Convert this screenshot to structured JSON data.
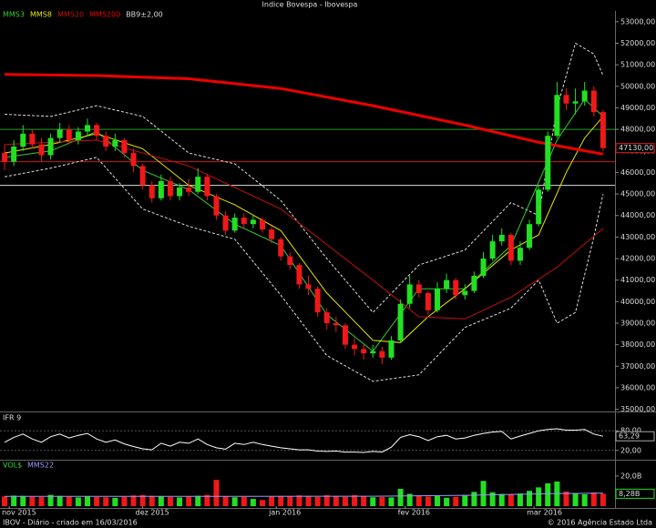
{
  "chart_data": [
    {
      "type": "candlestick",
      "title": "Indice Bovespa - Ibovespa",
      "xlim": [
        -0.5,
        66
      ],
      "xticks": [
        {
          "value": 0.5,
          "label": "nov 2015"
        },
        {
          "value": 15,
          "label": "dez 2015"
        },
        {
          "value": 29.5,
          "label": "jan 2016"
        },
        {
          "value": 43.5,
          "label": "fev 2016"
        },
        {
          "value": 57.5,
          "label": "mar 2016"
        }
      ],
      "ylim": [
        34900,
        53500
      ],
      "yticks": [
        {
          "value": 35000,
          "label": "35000,00"
        },
        {
          "value": 36000,
          "label": "36000,00"
        },
        {
          "value": 37000,
          "label": "37000,00"
        },
        {
          "value": 38000,
          "label": "38000,00"
        },
        {
          "value": 39000,
          "label": "39000,00"
        },
        {
          "value": 40000,
          "label": "40000,00"
        },
        {
          "value": 41000,
          "label": "41000,00"
        },
        {
          "value": 42000,
          "label": "42000,00"
        },
        {
          "value": 43000,
          "label": "43000,00"
        },
        {
          "value": 44000,
          "label": "44000,00"
        },
        {
          "value": 45000,
          "label": "45000,00"
        },
        {
          "value": 46000,
          "label": "46000,00"
        },
        {
          "value": 47000,
          "label": "47000,00"
        },
        {
          "value": 48000,
          "label": "48000,00"
        },
        {
          "value": 49000,
          "label": "49000,00"
        },
        {
          "value": 50000,
          "label": "50000,00"
        },
        {
          "value": 51000,
          "label": "51000,00"
        },
        {
          "value": 52000,
          "label": "52000,00"
        },
        {
          "value": 53000,
          "label": "53000,00"
        }
      ],
      "open": [
        46900,
        46500,
        47200,
        47800,
        47300,
        46800,
        47600,
        48000,
        47500,
        47900,
        48200,
        47700,
        47200,
        47500,
        46900,
        46300,
        45400,
        44800,
        45600,
        44900,
        45300,
        45100,
        45800,
        44900,
        44000,
        43300,
        43900,
        43600,
        43800,
        43350,
        42900,
        42100,
        41700,
        40800,
        40600,
        39500,
        39000,
        38900,
        38000,
        37800,
        37600,
        37700,
        37400,
        38200,
        39900,
        40800,
        40400,
        39600,
        40600,
        41000,
        40300,
        40500,
        41200,
        42000,
        42800,
        43100,
        41900,
        42500,
        43600,
        45200,
        47700,
        49600,
        49200,
        49300,
        49800,
        48800
      ],
      "high": [
        47300,
        47500,
        48200,
        48000,
        47600,
        47800,
        48300,
        48200,
        48100,
        48500,
        48300,
        47900,
        47800,
        47600,
        47100,
        46400,
        45600,
        45900,
        45800,
        45500,
        45700,
        46200,
        45900,
        45000,
        44200,
        44100,
        44100,
        44000,
        43900,
        43500,
        43000,
        42300,
        41800,
        41200,
        40700,
        39700,
        39300,
        39000,
        38300,
        38000,
        38000,
        37900,
        38400,
        40100,
        41200,
        41000,
        40500,
        40900,
        41300,
        41100,
        40800,
        41400,
        42300,
        43100,
        43400,
        43200,
        42800,
        43800,
        45400,
        47900,
        50200,
        49900,
        49900,
        50200,
        50000,
        48900
      ],
      "low": [
        46100,
        46300,
        47000,
        47100,
        46500,
        46600,
        47400,
        47300,
        47300,
        47700,
        47500,
        47000,
        47000,
        46700,
        46000,
        45200,
        44600,
        44700,
        44700,
        44700,
        44900,
        45000,
        44700,
        43800,
        43100,
        43200,
        43400,
        43400,
        43200,
        42700,
        41900,
        41500,
        40600,
        40300,
        39300,
        38700,
        38600,
        37800,
        37500,
        37300,
        37400,
        37100,
        37300,
        38100,
        39700,
        40200,
        39400,
        39500,
        40400,
        40100,
        40100,
        40400,
        41100,
        41900,
        42600,
        41700,
        41700,
        42400,
        43500,
        45100,
        47600,
        48900,
        48700,
        49100,
        48600,
        47000
      ],
      "close": [
        46500,
        47200,
        47800,
        47300,
        46800,
        47600,
        48000,
        47500,
        47900,
        48200,
        47700,
        47200,
        47500,
        46900,
        46300,
        45400,
        44800,
        45600,
        44900,
        45300,
        45100,
        45800,
        44900,
        44000,
        43300,
        43900,
        43600,
        43800,
        43350,
        42900,
        42100,
        41700,
        40800,
        40600,
        39500,
        39000,
        38900,
        38000,
        37800,
        37600,
        37700,
        37400,
        38200,
        39900,
        40800,
        40400,
        39600,
        40600,
        41000,
        40300,
        40500,
        41200,
        42000,
        42800,
        43100,
        41900,
        42500,
        43600,
        45200,
        47700,
        49600,
        49200,
        49300,
        49800,
        48800,
        47130
      ],
      "up_color": "#22e022",
      "down_color": "#f01818",
      "lines": [
        {
          "name": "MMS3",
          "color": "#33cc33",
          "x": [
            0,
            5,
            10,
            15,
            20,
            25,
            30,
            35,
            40,
            45,
            50,
            55,
            60,
            63,
            65
          ],
          "values": [
            46700,
            47000,
            47900,
            46100,
            45200,
            43600,
            42600,
            39400,
            37700,
            40600,
            40600,
            42600,
            47500,
            49400,
            48600
          ]
        },
        {
          "name": "MMS8",
          "color": "#e6e600",
          "x": [
            0,
            5,
            10,
            15,
            20,
            25,
            30,
            35,
            40,
            43,
            46,
            50,
            55,
            58,
            61,
            63,
            65
          ],
          "values": [
            46900,
            47300,
            47800,
            47100,
            45400,
            44500,
            43300,
            40400,
            38200,
            38100,
            39300,
            40600,
            42400,
            43100,
            46000,
            47600,
            48600
          ]
        },
        {
          "name": "MMS20",
          "color": "#c41010",
          "x": [
            0,
            10,
            20,
            30,
            40,
            45,
            50,
            55,
            60,
            65
          ],
          "values": [
            47300,
            47500,
            46300,
            44300,
            41000,
            39300,
            39200,
            40200,
            41600,
            43400
          ]
        },
        {
          "name": "MMS200",
          "color": "#ee0000",
          "x": [
            0,
            10,
            20,
            30,
            40,
            50,
            58,
            65
          ],
          "values": [
            50550,
            50500,
            50350,
            49900,
            49100,
            48200,
            47400,
            46850
          ]
        }
      ],
      "bands": {
        "name": "BB9±2,00",
        "color": "#dddddd",
        "upper": {
          "x": [
            0,
            5,
            10,
            15,
            20,
            25,
            30,
            35,
            40,
            45,
            50,
            55,
            58,
            60,
            62,
            64,
            65
          ],
          "values": [
            48700,
            48600,
            49100,
            48600,
            46900,
            46400,
            44700,
            42000,
            39500,
            41700,
            42400,
            44600,
            44000,
            49000,
            52000,
            51500,
            50500
          ]
        },
        "lower": {
          "x": [
            0,
            5,
            10,
            15,
            20,
            25,
            30,
            35,
            40,
            45,
            50,
            55,
            58,
            60,
            62,
            64,
            65
          ],
          "values": [
            45800,
            46200,
            46700,
            44300,
            43500,
            42900,
            40300,
            37500,
            36300,
            36600,
            38800,
            39700,
            41000,
            39000,
            39500,
            43000,
            45000
          ]
        }
      },
      "hlines": [
        {
          "value": 48000,
          "color": "#1fa01f"
        },
        {
          "value": 46500,
          "color": "#c81818"
        },
        {
          "value": 45400,
          "color": "#dddddd"
        }
      ],
      "last": {
        "value": 47130,
        "label": "47130,00"
      }
    },
    {
      "type": "line",
      "title": "IFR 9",
      "ylim": [
        0,
        100
      ],
      "yticks": [
        {
          "value": 80,
          "label": "80,00"
        },
        {
          "value": 20,
          "label": "20,00"
        }
      ],
      "color": "#ffffff",
      "values": [
        45,
        60,
        70,
        55,
        45,
        62,
        70,
        58,
        66,
        72,
        55,
        45,
        52,
        40,
        32,
        25,
        22,
        42,
        33,
        45,
        42,
        55,
        38,
        28,
        24,
        42,
        38,
        45,
        38,
        33,
        28,
        25,
        22,
        22,
        18,
        17,
        18,
        15,
        15,
        14,
        17,
        15,
        30,
        60,
        68,
        62,
        50,
        62,
        66,
        55,
        58,
        66,
        72,
        76,
        78,
        55,
        64,
        72,
        80,
        84,
        86,
        82,
        82,
        84,
        70,
        63.29
      ],
      "last": {
        "value": 63.29,
        "label": "63,29"
      }
    },
    {
      "type": "bar",
      "title": "VOL$",
      "ylim": [
        0,
        22
      ],
      "yticks": [
        {
          "value": 20,
          "label": "20,0B"
        }
      ],
      "values": [
        6.5,
        7,
        6.8,
        6.2,
        6,
        7.5,
        6.8,
        6.3,
        5.8,
        6.4,
        6.1,
        5.9,
        5.5,
        6.2,
        7.1,
        7.4,
        6.9,
        6.6,
        6.1,
        5.8,
        6.3,
        6.9,
        7.5,
        17.5,
        6.6,
        5.9,
        6.2,
        4.8,
        4.1,
        6.3,
        6.8,
        6.5,
        7.2,
        6.9,
        6.1,
        7.3,
        6.6,
        6.2,
        7.4,
        6.8,
        5.9,
        6.1,
        5.8,
        11.5,
        8.2,
        7.1,
        6.4,
        6.9,
        5.6,
        6.2,
        7,
        9.5,
        16.8,
        9.2,
        8.1,
        7.6,
        8.4,
        10.2,
        12.5,
        15.2,
        16.4,
        9.8,
        8.6,
        7.9,
        9.1,
        8.28
      ],
      "ma": {
        "name": "MMS22",
        "color": "#9a9aff",
        "x": [
          0,
          20,
          40,
          50,
          60,
          65
        ],
        "values": [
          6.5,
          6.5,
          6.6,
          7.2,
          8.4,
          8.6
        ]
      },
      "last": {
        "value": 8.28,
        "label": "8,28B"
      }
    }
  ],
  "footer": {
    "left": "IBOV - Diário - criado em 16/03/2016",
    "right": "© 2016 Agência Estado Ltda"
  }
}
